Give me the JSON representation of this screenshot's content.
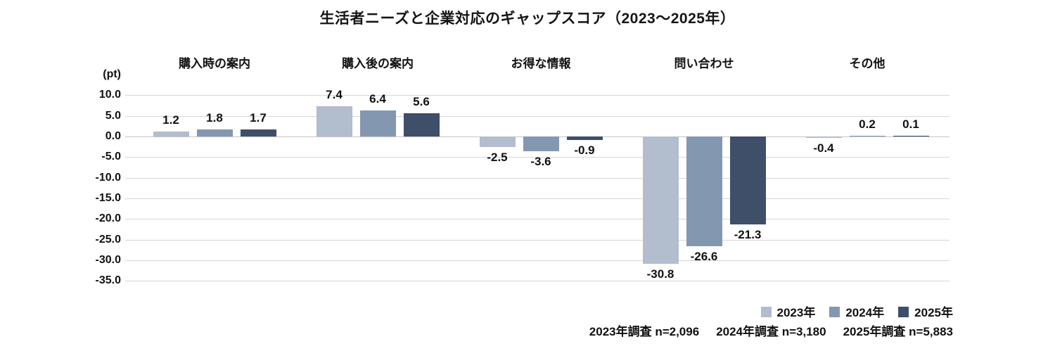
{
  "title": "生活者ニーズと企業対応のギャップスコア（2023～2025年）",
  "chart_data": {
    "type": "bar",
    "title": "生活者ニーズと企業対応のギャップスコア（2023～2025年）",
    "unit_label": "(pt)",
    "categories": [
      "購入時の案内",
      "購入後の案内",
      "お得な情報",
      "問い合わせ",
      "その他"
    ],
    "series": [
      {
        "name": "2023年",
        "color": "#b2bdce",
        "values": [
          1.2,
          7.4,
          -2.5,
          -30.8,
          -0.4
        ]
      },
      {
        "name": "2024年",
        "color": "#8497b1",
        "values": [
          1.8,
          6.4,
          -3.6,
          -26.6,
          0.2
        ]
      },
      {
        "name": "2025年",
        "color": "#3f4e69",
        "values": [
          1.7,
          5.6,
          -0.9,
          -21.3,
          0.1
        ]
      }
    ],
    "ytick_labels": [
      "10.0",
      "5.0",
      "0.0",
      "-5.0",
      "-10.0",
      "-15.0",
      "-20.0",
      "-25.0",
      "-30.0",
      "-35.0"
    ],
    "ylim": [
      -35,
      10
    ],
    "grid": true,
    "legend_position": "bottom-right"
  },
  "footnote": {
    "items": [
      "2023年調査 n=2,096",
      "2024年調査 n=3,180",
      "2025年調査 n=5,883"
    ]
  }
}
